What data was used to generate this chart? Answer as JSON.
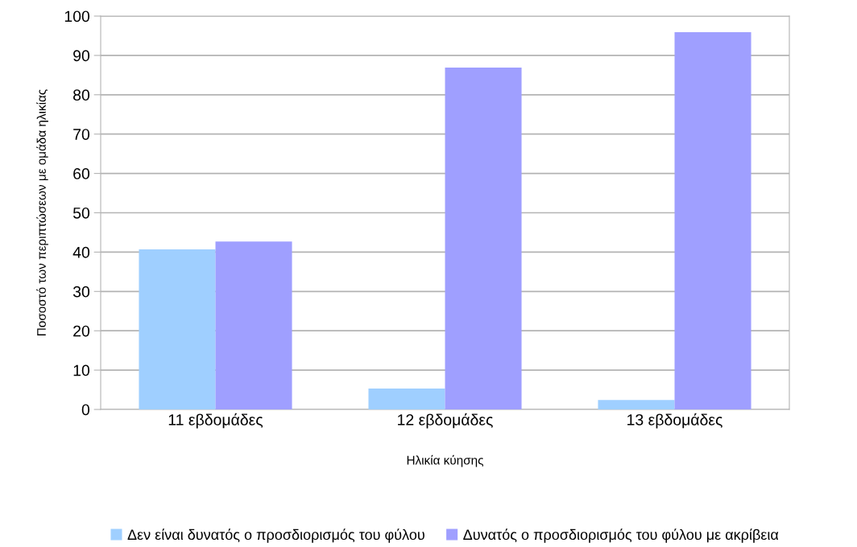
{
  "chart_data": {
    "type": "bar",
    "xlabel": "Ηλικία κύησης",
    "ylabel": "Ποσοστό των περιπτώσεων με ομάδα ηλικίας",
    "categories": [
      "11 εβδομάδες",
      "12 εβδομάδες",
      "13 εβδομάδες"
    ],
    "series": [
      {
        "name": "Δεν είναι δυνατός ο προσδιορισμός του φύλου",
        "color": "#9fcfff",
        "values": [
          40.7,
          5.3,
          2.4
        ]
      },
      {
        "name": "Δυνατός ο προσδιορισμός του φύλου με ακρίβεια",
        "color": "#9f9fff",
        "values": [
          42.7,
          86.9,
          95.9
        ]
      }
    ],
    "ylim": [
      0,
      100
    ],
    "yticks": [
      0,
      10,
      20,
      30,
      40,
      50,
      60,
      70,
      80,
      90,
      100
    ],
    "grid": "y",
    "legend": "bottom"
  }
}
